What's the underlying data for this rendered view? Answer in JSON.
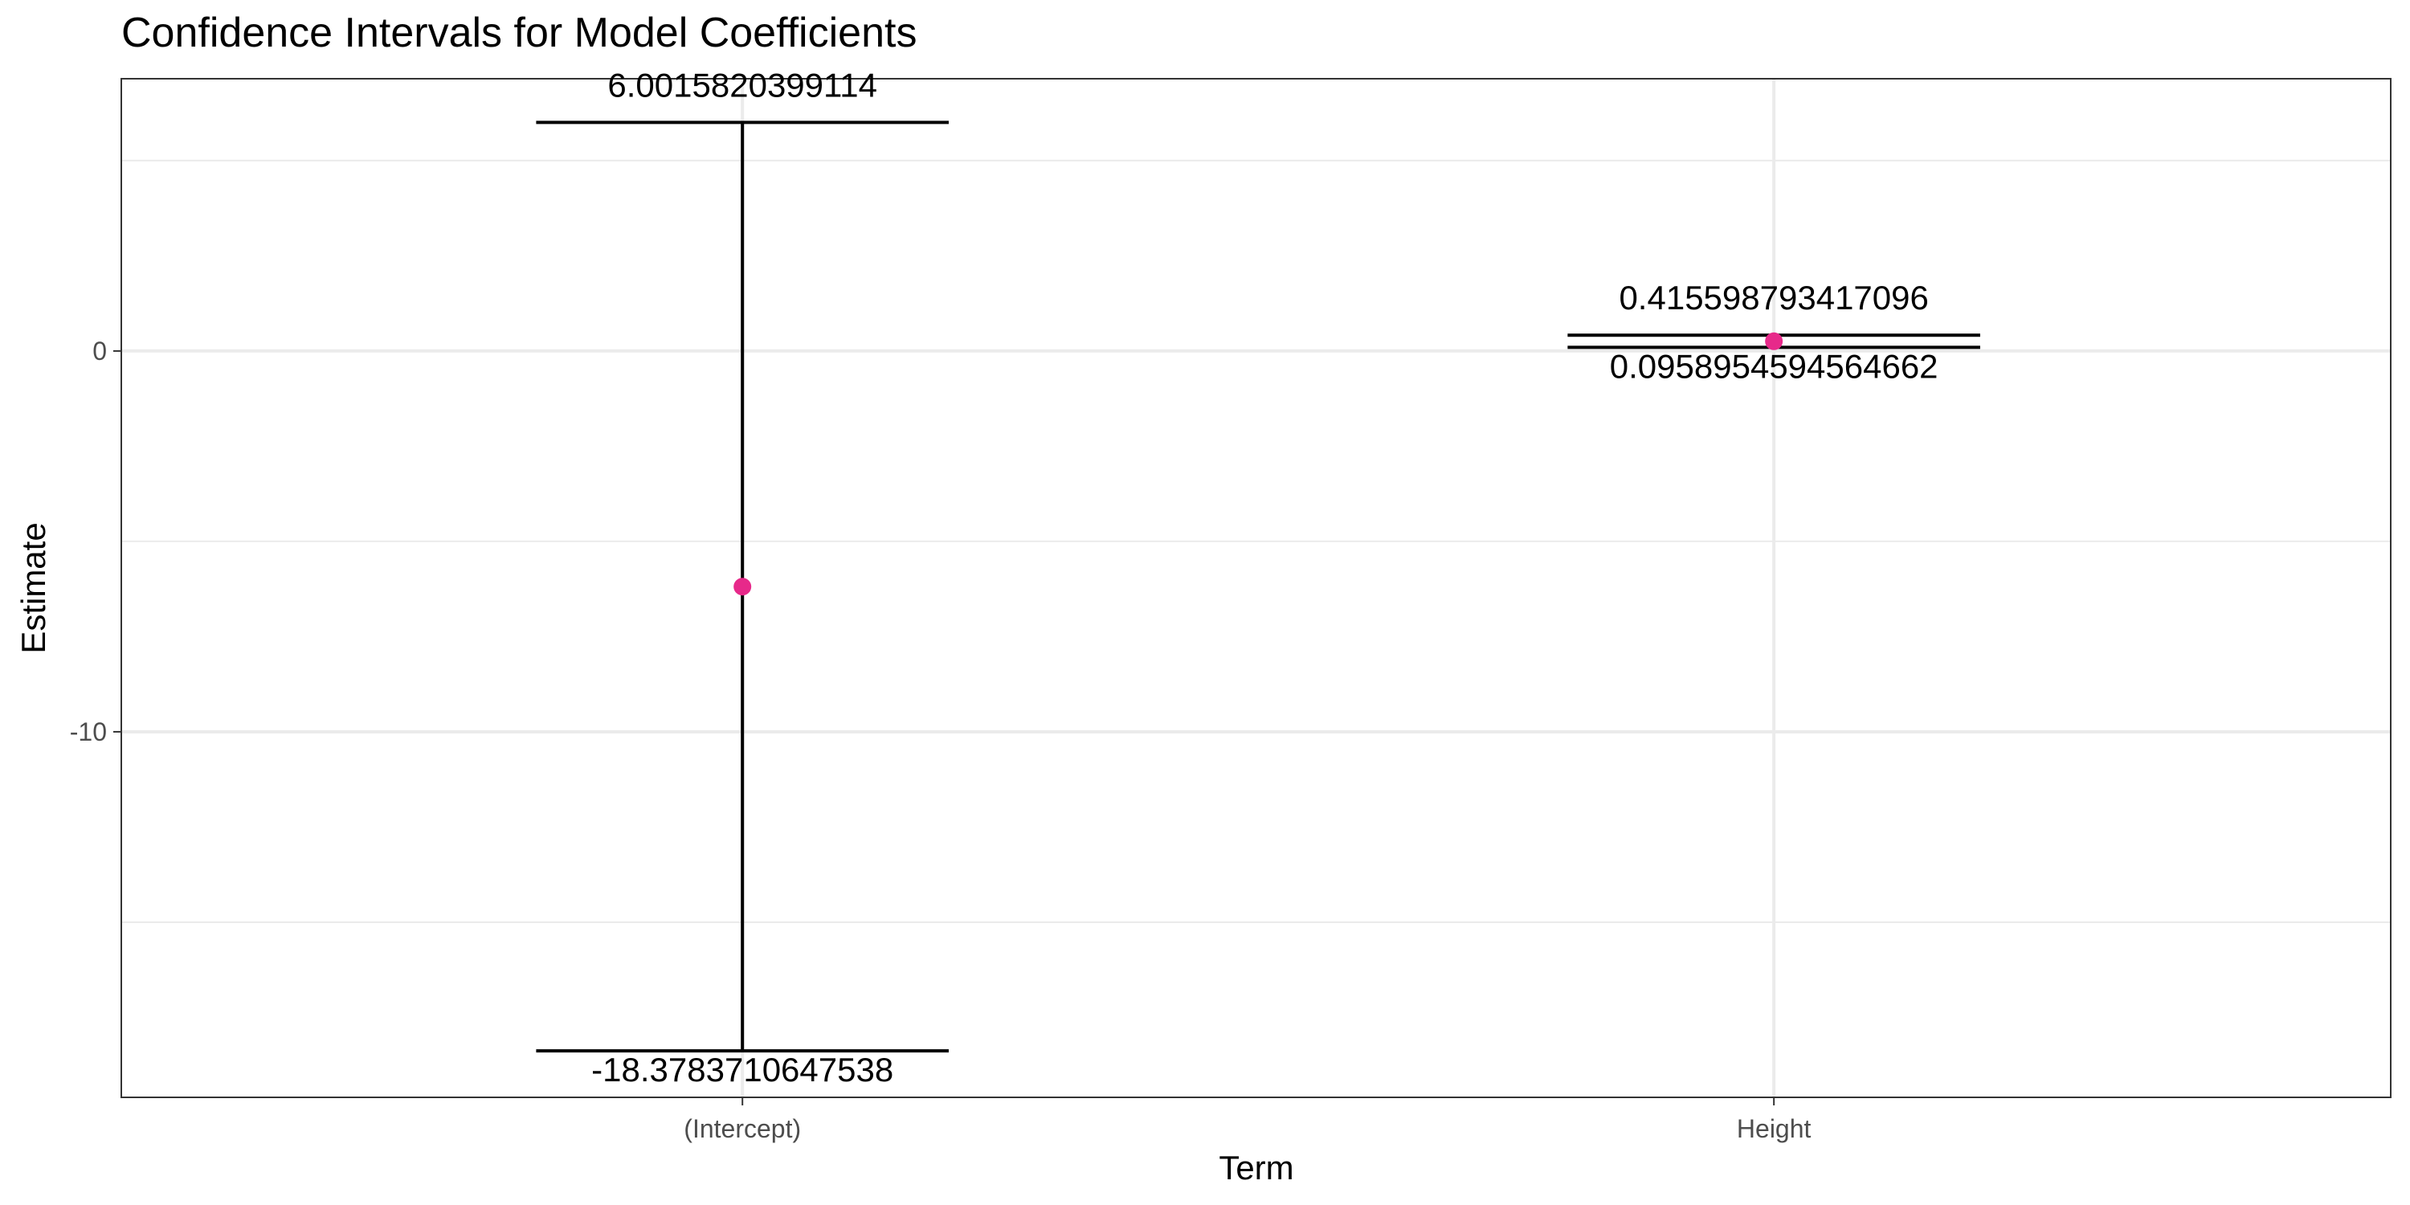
{
  "chart_data": {
    "type": "errorbar",
    "title": "Confidence Intervals for Model Coefficients",
    "xlabel": "Term",
    "ylabel": "Estimate",
    "categories": [
      "(Intercept)",
      "Height"
    ],
    "estimates": [
      -6.1883945124212,
      0.255747126436781
    ],
    "lower": [
      -18.3783710647538,
      0.0958954594564662
    ],
    "upper": [
      6.0015820399114,
      0.415598793417096
    ],
    "lower_labels": [
      "-18.3783710647538",
      "0.0958954594564662"
    ],
    "upper_labels": [
      "6.0015820399114",
      "0.415598793417096"
    ],
    "ylim": [
      -19.6,
      7.15
    ],
    "yticks": [
      0,
      -10
    ],
    "ytick_labels": [
      "0",
      "-10"
    ],
    "minor_gridlines_y": [
      5,
      -5,
      -15
    ],
    "grid": true,
    "point_color": "#e7298a",
    "bar_color": "#000000",
    "panel_border_color": "#333333",
    "grid_color": "#ebebeb"
  }
}
